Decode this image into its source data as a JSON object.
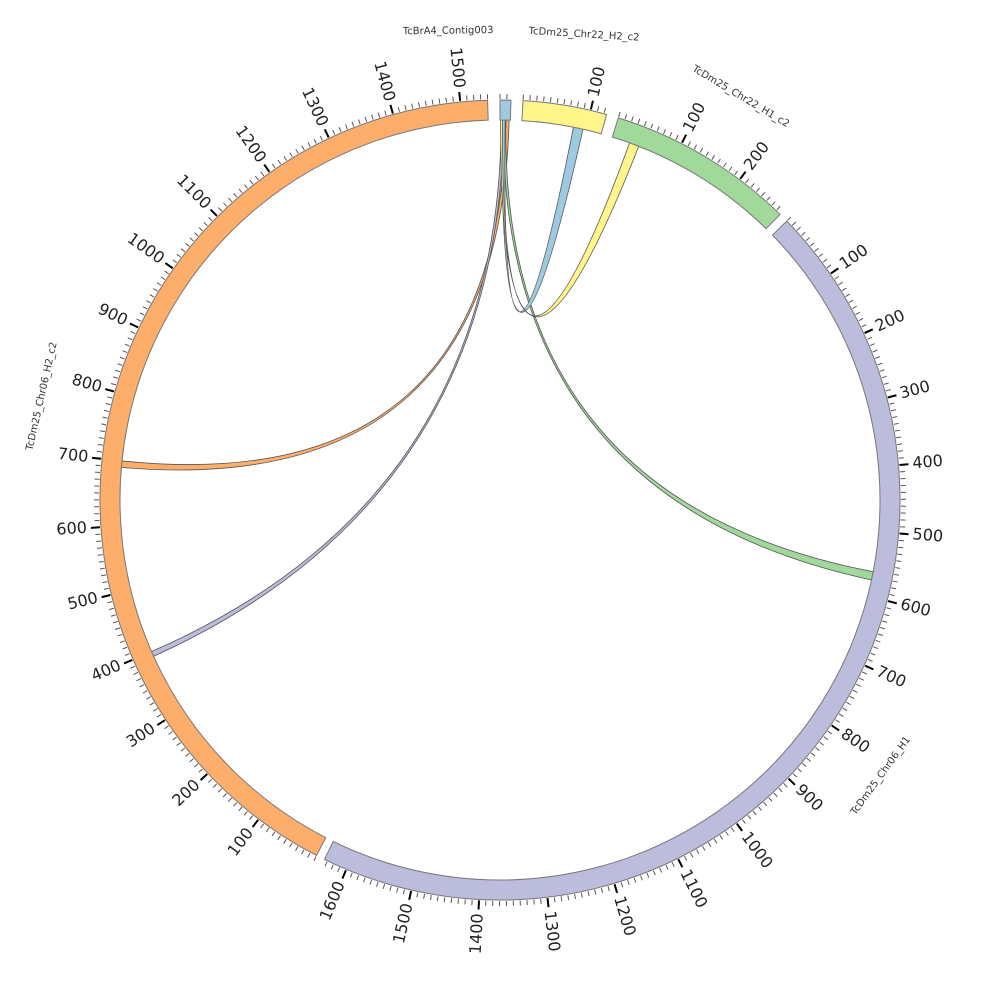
{
  "chart_data": {
    "type": "chord",
    "title": "",
    "tick_major_interval": 100,
    "tick_minor_interval": 10,
    "segments": [
      {
        "name": "TcBrA4_Contig003",
        "length": 16,
        "color": "#9ecae1"
      },
      {
        "name": "TcDm25_Chr22_H2_c2",
        "length": 124,
        "color": "#fff58a"
      },
      {
        "name": "TcDm25_Chr22_H1_c2",
        "length": 278,
        "color": "#a1d99b"
      },
      {
        "name": "TcDm25_Chr06_H1",
        "length": 1635,
        "color": "#bcbddc"
      },
      {
        "name": "TcDm25_Chr06_H2_c2",
        "length": 1540,
        "color": "#fdae6b"
      }
    ],
    "links": [
      {
        "source": "TcBrA4_Contig003",
        "source_range": [
          9,
          14
        ],
        "target": "TcDm25_Chr06_H2_c2",
        "target_range": [
          690,
          700
        ],
        "color": "#fdae6b"
      },
      {
        "source": "TcBrA4_Contig003",
        "source_range": [
          2,
          6
        ],
        "target": "TcDm25_Chr06_H2_c2",
        "target_range": [
          392,
          400
        ],
        "color": "#bcbddc"
      },
      {
        "source": "TcBrA4_Contig003",
        "source_range": [
          5,
          9
        ],
        "target": "TcDm25_Chr06_H1",
        "target_range": [
          562,
          575
        ],
        "color": "#a1d99b"
      },
      {
        "source": "TcBrA4_Contig003",
        "source_range": [
          3,
          8
        ],
        "target": "TcDm25_Chr22_H2_c2",
        "target_range": [
          80,
          95
        ],
        "color": "#9ecae1"
      },
      {
        "source": "TcBrA4_Contig003",
        "source_range": [
          1,
          4
        ],
        "target": "TcDm25_Chr22_H1_c2",
        "target_range": [
          28,
          43
        ],
        "color": "#fff58a"
      }
    ]
  }
}
